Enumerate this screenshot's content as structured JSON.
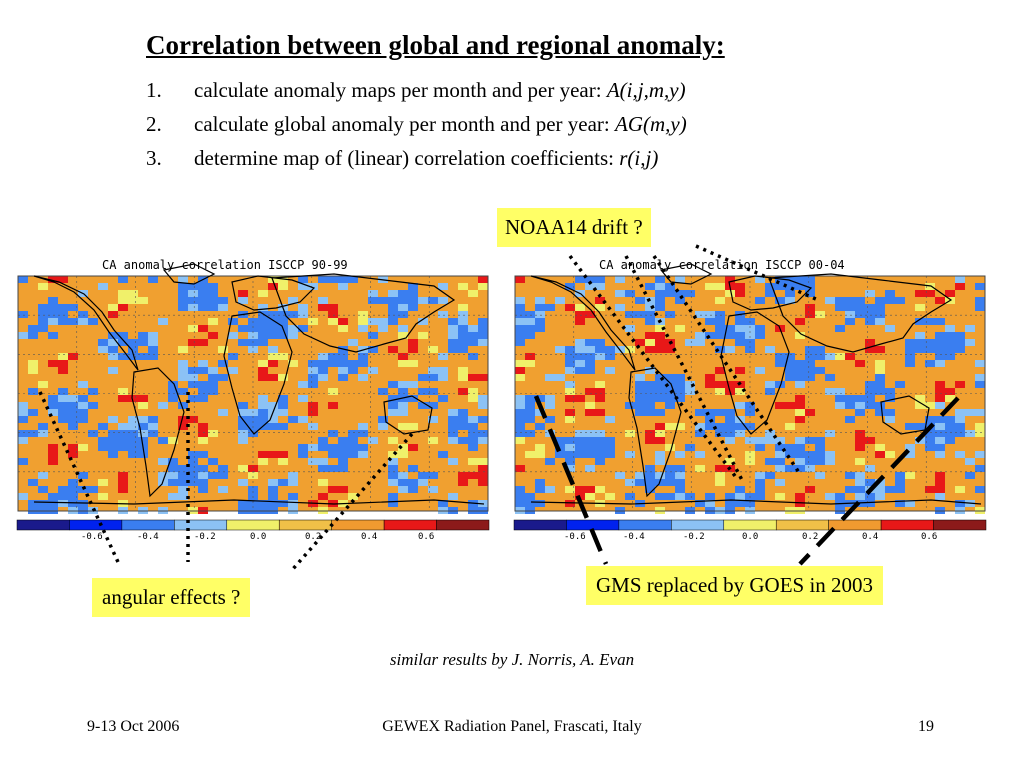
{
  "slide": {
    "title": "Correlation between global and regional anomaly:",
    "steps": [
      {
        "num": "1.",
        "text": "calculate anomaly maps per month and per year: ",
        "var": "A(i,j,m,y)"
      },
      {
        "num": "2.",
        "text": "calculate global anomaly per month and per year: ",
        "var": "AG(m,y)"
      },
      {
        "num": "3.",
        "text": "determine map of (linear) correlation coefficients: ",
        "var": "r(i,j)"
      }
    ],
    "callouts": {
      "noaa": "NOAA14 drift ?",
      "gms": "GMS replaced by GOES in 2003",
      "angular": "angular effects ?"
    },
    "credit": "similar results by J. Norris, A. Evan",
    "footer": {
      "date": "9-13 Oct 2006",
      "venue": "GEWEX Radiation Panel, Frascati, Italy",
      "page": "19"
    }
  },
  "maps": [
    {
      "title": "CA anomaly correlation ISCCP 90-99"
    },
    {
      "title": "CA anomaly correlation ISCCP 00-04"
    }
  ],
  "colorbar": {
    "colors": [
      "#1a1a8c",
      "#0022ee",
      "#3a7ef0",
      "#8cc2f5",
      "#f0f06a",
      "#f0c048",
      "#f09a30",
      "#e81818",
      "#8c1a1a"
    ],
    "tick_labels": [
      "-0.6",
      "-0.4",
      "-0.2",
      "0.0",
      "0.2",
      "0.4",
      "0.6"
    ]
  },
  "palette": {
    "callout_bg": "#ffff66",
    "map_orange": "#f0a030",
    "map_blue": "#3a7ef0",
    "map_red": "#e81818",
    "map_lightblue": "#8cc2f5",
    "map_yellow": "#f0f06a"
  }
}
